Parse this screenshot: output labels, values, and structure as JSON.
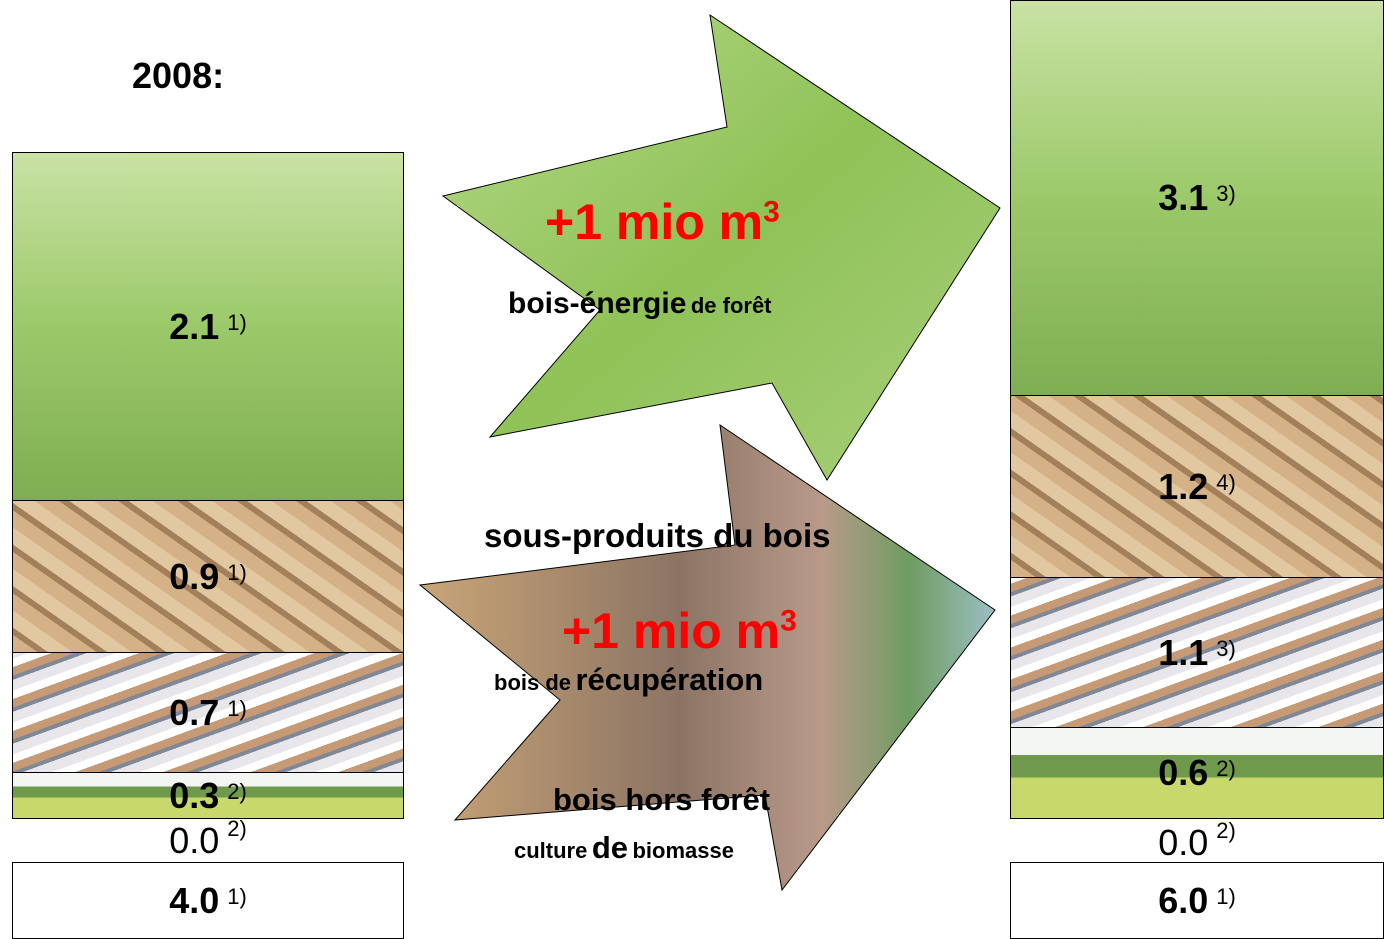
{
  "left": {
    "title": "2008:",
    "segments": [
      {
        "value": "2.1",
        "note": "1)"
      },
      {
        "value": "0.9",
        "note": "1)"
      },
      {
        "value": "0.7",
        "note": "1)"
      },
      {
        "value": "0.3",
        "note": "2)"
      }
    ],
    "zero": {
      "value": "0.0",
      "note": "2)"
    },
    "total": {
      "value": "4.0",
      "note": "1)"
    }
  },
  "right": {
    "segments": [
      {
        "value": "3.1",
        "note": "3)"
      },
      {
        "value": "1.2",
        "note": "4)"
      },
      {
        "value": "1.1",
        "note": "3)"
      },
      {
        "value": "0.6",
        "note": "2)"
      }
    ],
    "zero": {
      "value": "0.0",
      "note": "2)"
    },
    "total": {
      "value": "6.0",
      "note": "1)"
    }
  },
  "arrows": {
    "forest": {
      "amount": "+1 mio m",
      "exponent": "3",
      "label_main": "bois-énergie",
      "label_rest": "de forêt"
    },
    "other": {
      "byproducts": "sous-produits du bois",
      "amount": "+1 mio m",
      "exponent": "3",
      "recovered_small": "bois de",
      "recovered_main": "récupération",
      "outside_forest": "bois hors forêt",
      "culture_1": "culture",
      "culture_2": "de",
      "culture_3": "biomasse"
    }
  }
}
